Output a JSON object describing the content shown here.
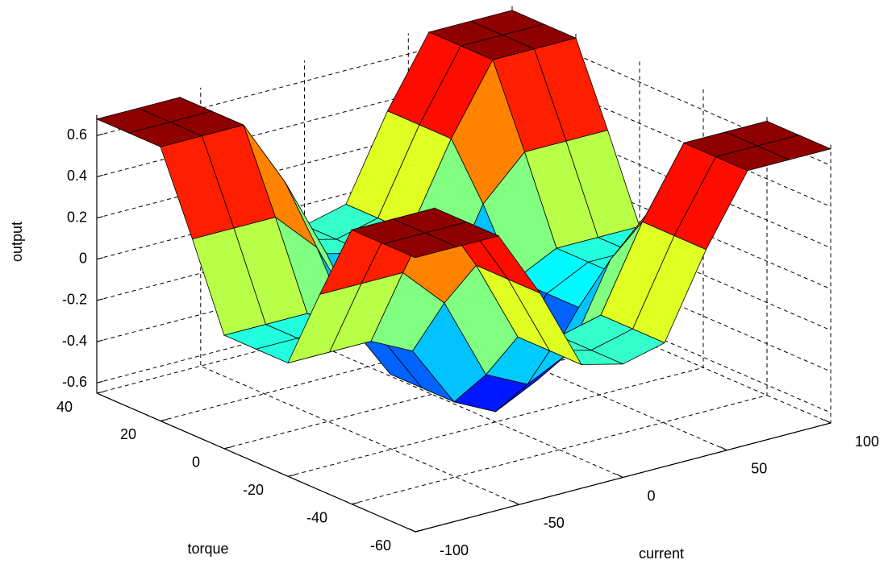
{
  "chart_data": {
    "type": "surface",
    "xlabel": "current",
    "ylabel": "torque",
    "zlabel": "output",
    "x": [
      -100,
      -80,
      -60,
      -40,
      -20,
      0,
      20,
      40,
      60,
      80,
      100
    ],
    "y": [
      -60,
      -50,
      -40,
      -30,
      -20,
      -10,
      0,
      10,
      20,
      30,
      40
    ],
    "z": [
      [
        0.68,
        0.68,
        0.68,
        0.35,
        -0.05,
        -0.1,
        -0.05,
        0.35,
        0.68,
        0.68,
        0.68
      ],
      [
        0.68,
        0.68,
        0.68,
        0.35,
        -0.05,
        -0.1,
        -0.05,
        0.35,
        0.68,
        0.68,
        0.68
      ],
      [
        0.68,
        0.68,
        0.68,
        0.35,
        -0.05,
        -0.1,
        -0.05,
        0.35,
        0.68,
        0.68,
        0.68
      ],
      [
        0.3,
        0.3,
        0.3,
        0.1,
        -0.3,
        -0.4,
        -0.3,
        0.1,
        0.3,
        0.3,
        0.3
      ],
      [
        -0.1,
        -0.1,
        -0.1,
        -0.2,
        -0.5,
        -0.6,
        -0.5,
        -0.2,
        -0.1,
        -0.1,
        -0.1
      ],
      [
        -0.1,
        -0.1,
        -0.1,
        -0.2,
        -0.5,
        -0.6,
        -0.5,
        -0.2,
        -0.1,
        -0.1,
        -0.1
      ],
      [
        -0.1,
        -0.1,
        -0.1,
        -0.2,
        -0.5,
        -0.6,
        -0.5,
        -0.2,
        -0.1,
        -0.1,
        -0.1
      ],
      [
        0.3,
        0.3,
        0.3,
        0.1,
        -0.3,
        -0.4,
        -0.3,
        0.1,
        0.3,
        0.3,
        0.3
      ],
      [
        0.68,
        0.68,
        0.68,
        0.35,
        -0.05,
        -0.1,
        -0.05,
        0.35,
        0.68,
        0.68,
        0.68
      ],
      [
        0.68,
        0.68,
        0.68,
        0.35,
        -0.05,
        -0.1,
        -0.05,
        0.35,
        0.68,
        0.68,
        0.68
      ],
      [
        0.68,
        0.68,
        0.68,
        0.35,
        -0.05,
        -0.1,
        -0.05,
        0.35,
        0.68,
        0.68,
        0.68
      ]
    ],
    "xlim": [
      -100,
      100
    ],
    "xticks": [
      -100,
      -50,
      0,
      50,
      100
    ],
    "ylim": [
      -60,
      40
    ],
    "yticks": [
      -60,
      -40,
      -20,
      0,
      20,
      40
    ],
    "zlim": [
      -0.65,
      0.7
    ],
    "zticks": [
      -0.6,
      -0.4,
      -0.2,
      0,
      0.2,
      0.4,
      0.6
    ],
    "colormap": "jet",
    "grid": true
  }
}
